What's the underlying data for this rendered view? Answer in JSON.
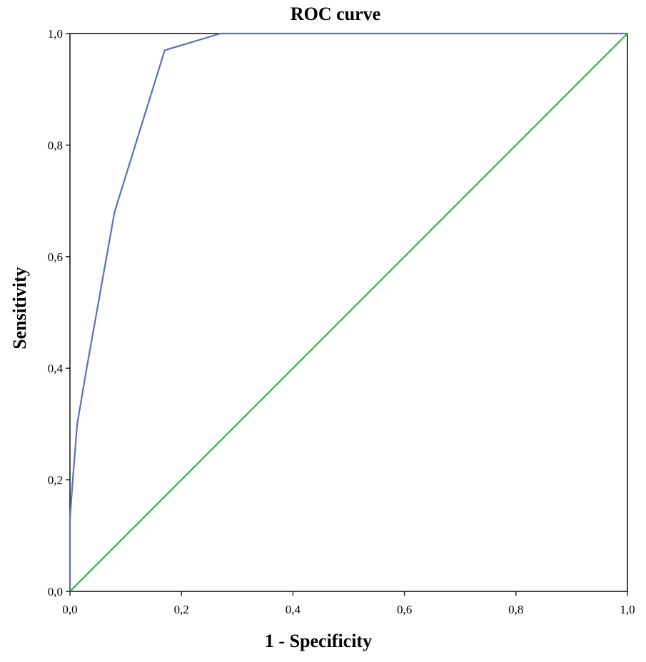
{
  "chart_data": {
    "type": "line",
    "title": "ROC curve",
    "xlabel": "1 - Specificity",
    "ylabel": "Sensitivity",
    "xlim": [
      0,
      1
    ],
    "ylim": [
      0,
      1
    ],
    "x_ticks": [
      0,
      0.2,
      0.4,
      0.6,
      0.8,
      1.0
    ],
    "y_ticks": [
      0,
      0.2,
      0.4,
      0.6,
      0.8,
      1.0
    ],
    "x_tick_labels": [
      "0,0",
      "0,2",
      "0,4",
      "0,6",
      "0,8",
      "1,0"
    ],
    "y_tick_labels": [
      "0,0",
      "0,2",
      "0,4",
      "0,6",
      "0,8",
      "1,0"
    ],
    "grid": false,
    "series": [
      {
        "color": "#5b6fbd",
        "points": [
          [
            0.0,
            0.0
          ],
          [
            0.0,
            0.13
          ],
          [
            0.005,
            0.2
          ],
          [
            0.013,
            0.3
          ],
          [
            0.03,
            0.4
          ],
          [
            0.08,
            0.68
          ],
          [
            0.17,
            0.97
          ],
          [
            0.27,
            1.0
          ],
          [
            1.0,
            1.0
          ]
        ]
      },
      {
        "color": "#35b34a",
        "points": [
          [
            0.0,
            0.0
          ],
          [
            1.0,
            1.0
          ]
        ]
      }
    ]
  }
}
